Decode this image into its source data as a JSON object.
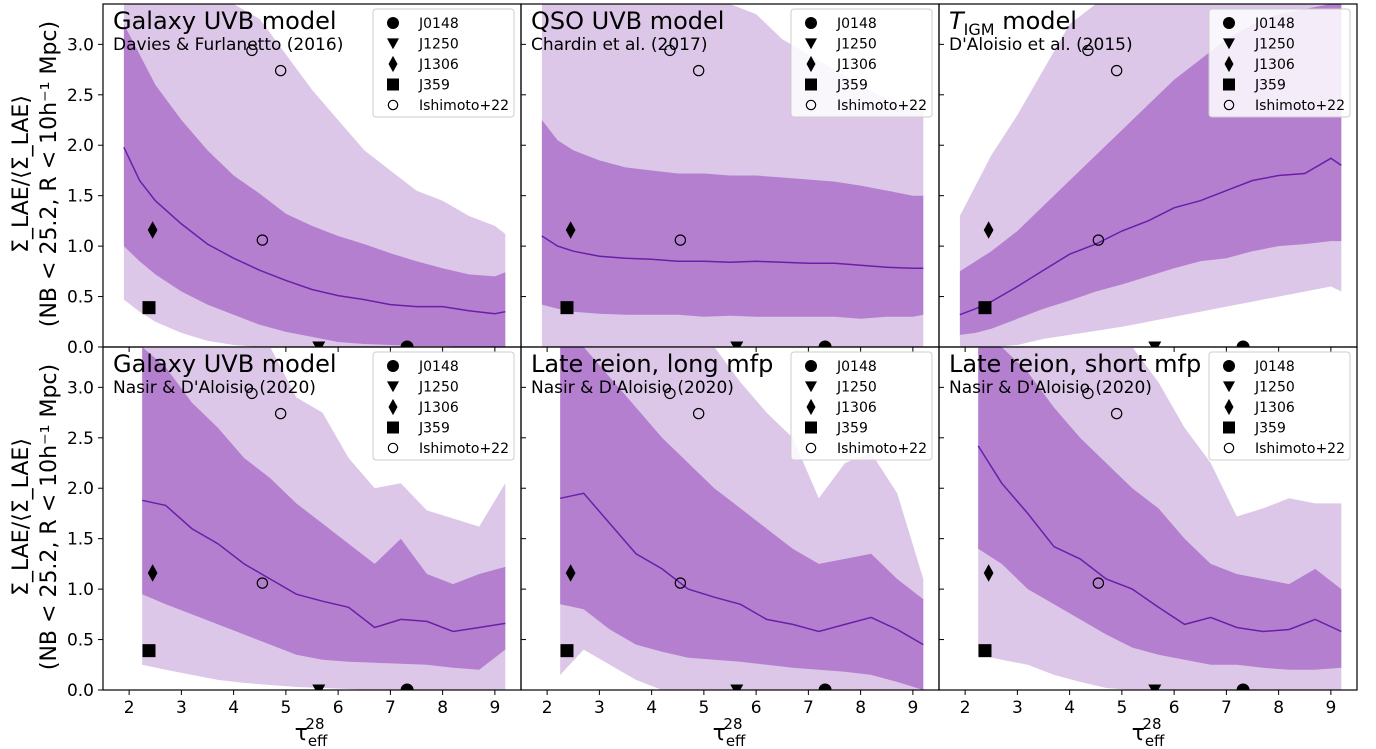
{
  "colors": {
    "band_outer": "#dcc7e8",
    "band_inner": "#b57fd0",
    "median": "#6a1fa8",
    "marker": "#000000"
  },
  "axes": {
    "xlabel": "τ",
    "xlabel_sup": "28",
    "xlabel_sub": "eff",
    "ylabel_line1": "Σ_LAE/⟨Σ_LAE⟩",
    "ylabel_line2": "(NB < 25.2, R < 10h⁻¹ Mpc)",
    "xticks": [
      "2",
      "3",
      "4",
      "5",
      "6",
      "7",
      "8",
      "9"
    ],
    "yticks": [
      "0.0",
      "0.5",
      "1.0",
      "1.5",
      "2.0",
      "2.5",
      "3.0"
    ]
  },
  "legend": {
    "entries": [
      {
        "label": "J0148",
        "marker": "circle"
      },
      {
        "label": "J1250",
        "marker": "triangle-down"
      },
      {
        "label": "J1306",
        "marker": "diamond"
      },
      {
        "label": "J359",
        "marker": "square"
      },
      {
        "label": "Ishimoto+22",
        "marker": "open-circle"
      }
    ]
  },
  "chart_data": [
    {
      "type": "area",
      "title": "Galaxy UVB model",
      "subtitle": "Davies & Furlanetto (2016)",
      "xlim": [
        1.5,
        9.5
      ],
      "ylim": [
        0,
        3.4
      ],
      "x": [
        1.9,
        2.2,
        2.5,
        3.0,
        3.5,
        4.0,
        4.5,
        5.0,
        5.5,
        6.0,
        6.5,
        7.0,
        7.5,
        8.0,
        8.5,
        9.0,
        9.2
      ],
      "median": [
        1.98,
        1.65,
        1.45,
        1.22,
        1.02,
        0.88,
        0.76,
        0.66,
        0.57,
        0.51,
        0.47,
        0.42,
        0.4,
        0.4,
        0.36,
        0.33,
        0.35
      ],
      "inner_upper": [
        3.2,
        2.9,
        2.6,
        2.25,
        1.95,
        1.7,
        1.52,
        1.32,
        1.2,
        1.1,
        1.02,
        0.93,
        0.85,
        0.78,
        0.72,
        0.7,
        0.74
      ],
      "inner_lower": [
        1.0,
        0.85,
        0.72,
        0.55,
        0.42,
        0.32,
        0.22,
        0.15,
        0.1,
        0.05,
        0.03,
        0.02,
        0.01,
        0.01,
        0.0,
        0.0,
        0.0
      ],
      "outer_upper": [
        3.4,
        3.4,
        3.4,
        3.4,
        3.4,
        3.4,
        3.25,
        2.9,
        2.55,
        2.25,
        1.95,
        1.75,
        1.55,
        1.45,
        1.3,
        1.2,
        1.12
      ],
      "outer_lower": [
        0.47,
        0.35,
        0.25,
        0.14,
        0.06,
        0.02,
        0.0,
        0.0,
        0.0,
        0.0,
        0.0,
        0.0,
        0.0,
        0.0,
        0.0,
        0.0,
        0.0
      ]
    },
    {
      "type": "area",
      "title": "QSO UVB model",
      "subtitle": "Chardin et al. (2017)",
      "xlim": [
        1.5,
        9.5
      ],
      "ylim": [
        0,
        3.4
      ],
      "x": [
        1.9,
        2.2,
        2.5,
        3.0,
        3.5,
        4.0,
        4.5,
        5.0,
        5.5,
        6.0,
        6.5,
        7.0,
        7.5,
        8.0,
        8.5,
        9.0,
        9.2
      ],
      "median": [
        1.1,
        1.0,
        0.95,
        0.9,
        0.88,
        0.87,
        0.85,
        0.85,
        0.84,
        0.85,
        0.84,
        0.83,
        0.83,
        0.81,
        0.79,
        0.78,
        0.78
      ],
      "inner_upper": [
        2.25,
        2.05,
        1.95,
        1.85,
        1.78,
        1.75,
        1.72,
        1.72,
        1.7,
        1.7,
        1.68,
        1.66,
        1.64,
        1.6,
        1.55,
        1.5,
        1.5
      ],
      "inner_lower": [
        0.42,
        0.38,
        0.35,
        0.33,
        0.32,
        0.32,
        0.32,
        0.3,
        0.31,
        0.3,
        0.3,
        0.3,
        0.3,
        0.28,
        0.3,
        0.3,
        0.32
      ],
      "outer_upper": [
        3.4,
        3.4,
        3.4,
        3.4,
        3.4,
        3.4,
        3.4,
        3.4,
        3.4,
        3.3,
        3.05,
        2.9,
        2.75,
        2.6,
        2.45,
        2.4,
        2.4
      ],
      "outer_lower": [
        0.0,
        0.0,
        0.0,
        0.0,
        0.0,
        0.0,
        0.0,
        0.0,
        0.0,
        0.0,
        0.0,
        0.0,
        0.0,
        0.0,
        0.0,
        0.0,
        0.0
      ]
    },
    {
      "type": "area",
      "title": "T",
      "title_sub": "IGM",
      "title_rest": " model",
      "subtitle": "D'Aloisio et al. (2015)",
      "xlim": [
        1.5,
        9.5
      ],
      "ylim": [
        0,
        3.4
      ],
      "x": [
        1.9,
        2.2,
        2.5,
        3.0,
        3.5,
        4.0,
        4.5,
        5.0,
        5.5,
        6.0,
        6.5,
        7.0,
        7.5,
        8.0,
        8.5,
        9.0,
        9.2
      ],
      "median": [
        0.32,
        0.38,
        0.45,
        0.6,
        0.76,
        0.92,
        1.02,
        1.15,
        1.25,
        1.38,
        1.45,
        1.55,
        1.65,
        1.7,
        1.72,
        1.87,
        1.8
      ],
      "inner_upper": [
        0.75,
        0.85,
        0.95,
        1.15,
        1.4,
        1.65,
        1.9,
        2.15,
        2.4,
        2.65,
        2.85,
        3.05,
        3.2,
        3.3,
        3.35,
        3.4,
        3.4
      ],
      "inner_lower": [
        0.12,
        0.14,
        0.18,
        0.28,
        0.38,
        0.46,
        0.55,
        0.62,
        0.7,
        0.78,
        0.85,
        0.88,
        0.95,
        1.0,
        1.02,
        1.05,
        1.05
      ],
      "outer_upper": [
        1.3,
        1.6,
        1.9,
        2.3,
        2.75,
        3.2,
        3.4,
        3.4,
        3.4,
        3.4,
        3.4,
        3.4,
        3.4,
        3.4,
        3.4,
        3.4,
        3.4
      ],
      "outer_lower": [
        0.0,
        0.0,
        0.0,
        0.02,
        0.08,
        0.12,
        0.16,
        0.2,
        0.25,
        0.3,
        0.35,
        0.4,
        0.45,
        0.5,
        0.55,
        0.6,
        0.55
      ]
    },
    {
      "type": "area",
      "title": "Galaxy UVB model",
      "subtitle": "Nasir & D'Aloisio (2020)",
      "xlim": [
        1.5,
        9.5
      ],
      "ylim": [
        0,
        3.4
      ],
      "x": [
        2.25,
        2.7,
        3.2,
        3.7,
        4.2,
        4.7,
        5.2,
        5.7,
        6.2,
        6.7,
        7.2,
        7.7,
        8.2,
        8.7,
        9.2
      ],
      "median": [
        1.88,
        1.83,
        1.6,
        1.45,
        1.25,
        1.1,
        0.95,
        0.88,
        0.82,
        0.62,
        0.7,
        0.68,
        0.58,
        0.62,
        0.66
      ],
      "inner_upper": [
        3.4,
        3.2,
        2.85,
        2.6,
        2.3,
        2.1,
        1.85,
        1.65,
        1.45,
        1.25,
        1.5,
        1.15,
        1.05,
        1.15,
        1.22
      ],
      "inner_lower": [
        0.95,
        0.85,
        0.75,
        0.65,
        0.55,
        0.45,
        0.35,
        0.3,
        0.28,
        0.27,
        0.26,
        0.25,
        0.22,
        0.2,
        0.4
      ],
      "outer_upper": [
        3.4,
        3.4,
        3.4,
        3.4,
        3.4,
        3.4,
        2.9,
        2.75,
        2.3,
        2.0,
        2.05,
        1.78,
        1.7,
        1.62,
        2.05
      ],
      "outer_lower": [
        0.25,
        0.2,
        0.15,
        0.1,
        0.07,
        0.05,
        0.03,
        0.02,
        0.01,
        0.0,
        0.0,
        0.0,
        0.0,
        0.0,
        0.0
      ]
    },
    {
      "type": "area",
      "title": "Late reion, long mfp",
      "subtitle": "Nasir & D'Aloisio (2020)",
      "xlim": [
        1.5,
        9.5
      ],
      "ylim": [
        0,
        3.4
      ],
      "x": [
        2.25,
        2.7,
        3.2,
        3.7,
        4.2,
        4.7,
        5.2,
        5.7,
        6.2,
        6.7,
        7.2,
        7.7,
        8.2,
        8.7,
        9.2
      ],
      "median": [
        1.9,
        1.95,
        1.65,
        1.35,
        1.2,
        1.0,
        0.92,
        0.85,
        0.7,
        0.65,
        0.58,
        0.65,
        0.72,
        0.6,
        0.45
      ],
      "inner_upper": [
        3.4,
        3.4,
        3.1,
        2.8,
        2.5,
        2.25,
        2.0,
        1.8,
        1.6,
        1.4,
        1.25,
        1.3,
        1.35,
        1.1,
        0.9
      ],
      "inner_lower": [
        0.85,
        0.8,
        0.6,
        0.45,
        0.38,
        0.32,
        0.3,
        0.28,
        0.25,
        0.22,
        0.2,
        0.18,
        0.15,
        0.08,
        0.0
      ],
      "outer_upper": [
        3.4,
        3.4,
        3.4,
        3.4,
        3.4,
        3.4,
        3.4,
        3.05,
        2.75,
        2.5,
        1.9,
        2.25,
        2.35,
        1.95,
        1.1
      ],
      "outer_lower": [
        0.15,
        0.4,
        0.25,
        0.1,
        0.0,
        0.0,
        0.0,
        0.0,
        0.0,
        0.0,
        0.0,
        0.0,
        0.0,
        0.0,
        0.0
      ]
    },
    {
      "type": "area",
      "title": "Late reion, short mfp",
      "subtitle": "Nasir & D'Aloisio (2020)",
      "xlim": [
        1.5,
        9.5
      ],
      "ylim": [
        0,
        3.4
      ],
      "x": [
        2.25,
        2.7,
        3.2,
        3.7,
        4.2,
        4.7,
        5.2,
        5.7,
        6.2,
        6.7,
        7.2,
        7.7,
        8.2,
        8.7,
        9.2
      ],
      "median": [
        2.42,
        2.05,
        1.75,
        1.42,
        1.3,
        1.1,
        1.0,
        0.82,
        0.65,
        0.72,
        0.62,
        0.58,
        0.6,
        0.7,
        0.58
      ],
      "inner_upper": [
        3.4,
        3.4,
        3.15,
        2.8,
        2.5,
        2.25,
        2.0,
        1.8,
        1.5,
        1.25,
        1.15,
        1.1,
        1.05,
        1.2,
        1.0
      ],
      "inner_lower": [
        1.4,
        1.25,
        1.0,
        0.85,
        0.7,
        0.55,
        0.42,
        0.35,
        0.3,
        0.25,
        0.25,
        0.22,
        0.2,
        0.2,
        0.22
      ],
      "outer_upper": [
        3.4,
        3.4,
        3.4,
        3.4,
        3.4,
        3.4,
        3.4,
        3.05,
        2.6,
        2.25,
        1.72,
        1.8,
        1.9,
        1.85,
        1.85
      ],
      "outer_lower": [
        0.35,
        0.3,
        0.25,
        0.15,
        0.08,
        0.02,
        0.0,
        0.0,
        0.0,
        0.0,
        0.0,
        0.0,
        0.0,
        0.0,
        0.0
      ]
    }
  ],
  "observations": {
    "J0148": {
      "x": 7.32,
      "y": 0.0,
      "marker": "circle"
    },
    "J1250": {
      "x": 5.63,
      "y": 0.0,
      "marker": "triangle-down"
    },
    "J1306": {
      "x": 2.45,
      "y": 1.16,
      "marker": "diamond"
    },
    "J359": {
      "x": 2.38,
      "y": 0.39,
      "marker": "square"
    },
    "Ishimoto+22": {
      "x": [
        4.35,
        4.9,
        4.55
      ],
      "y": [
        2.94,
        2.74,
        1.06
      ],
      "marker": "open-circle"
    }
  }
}
